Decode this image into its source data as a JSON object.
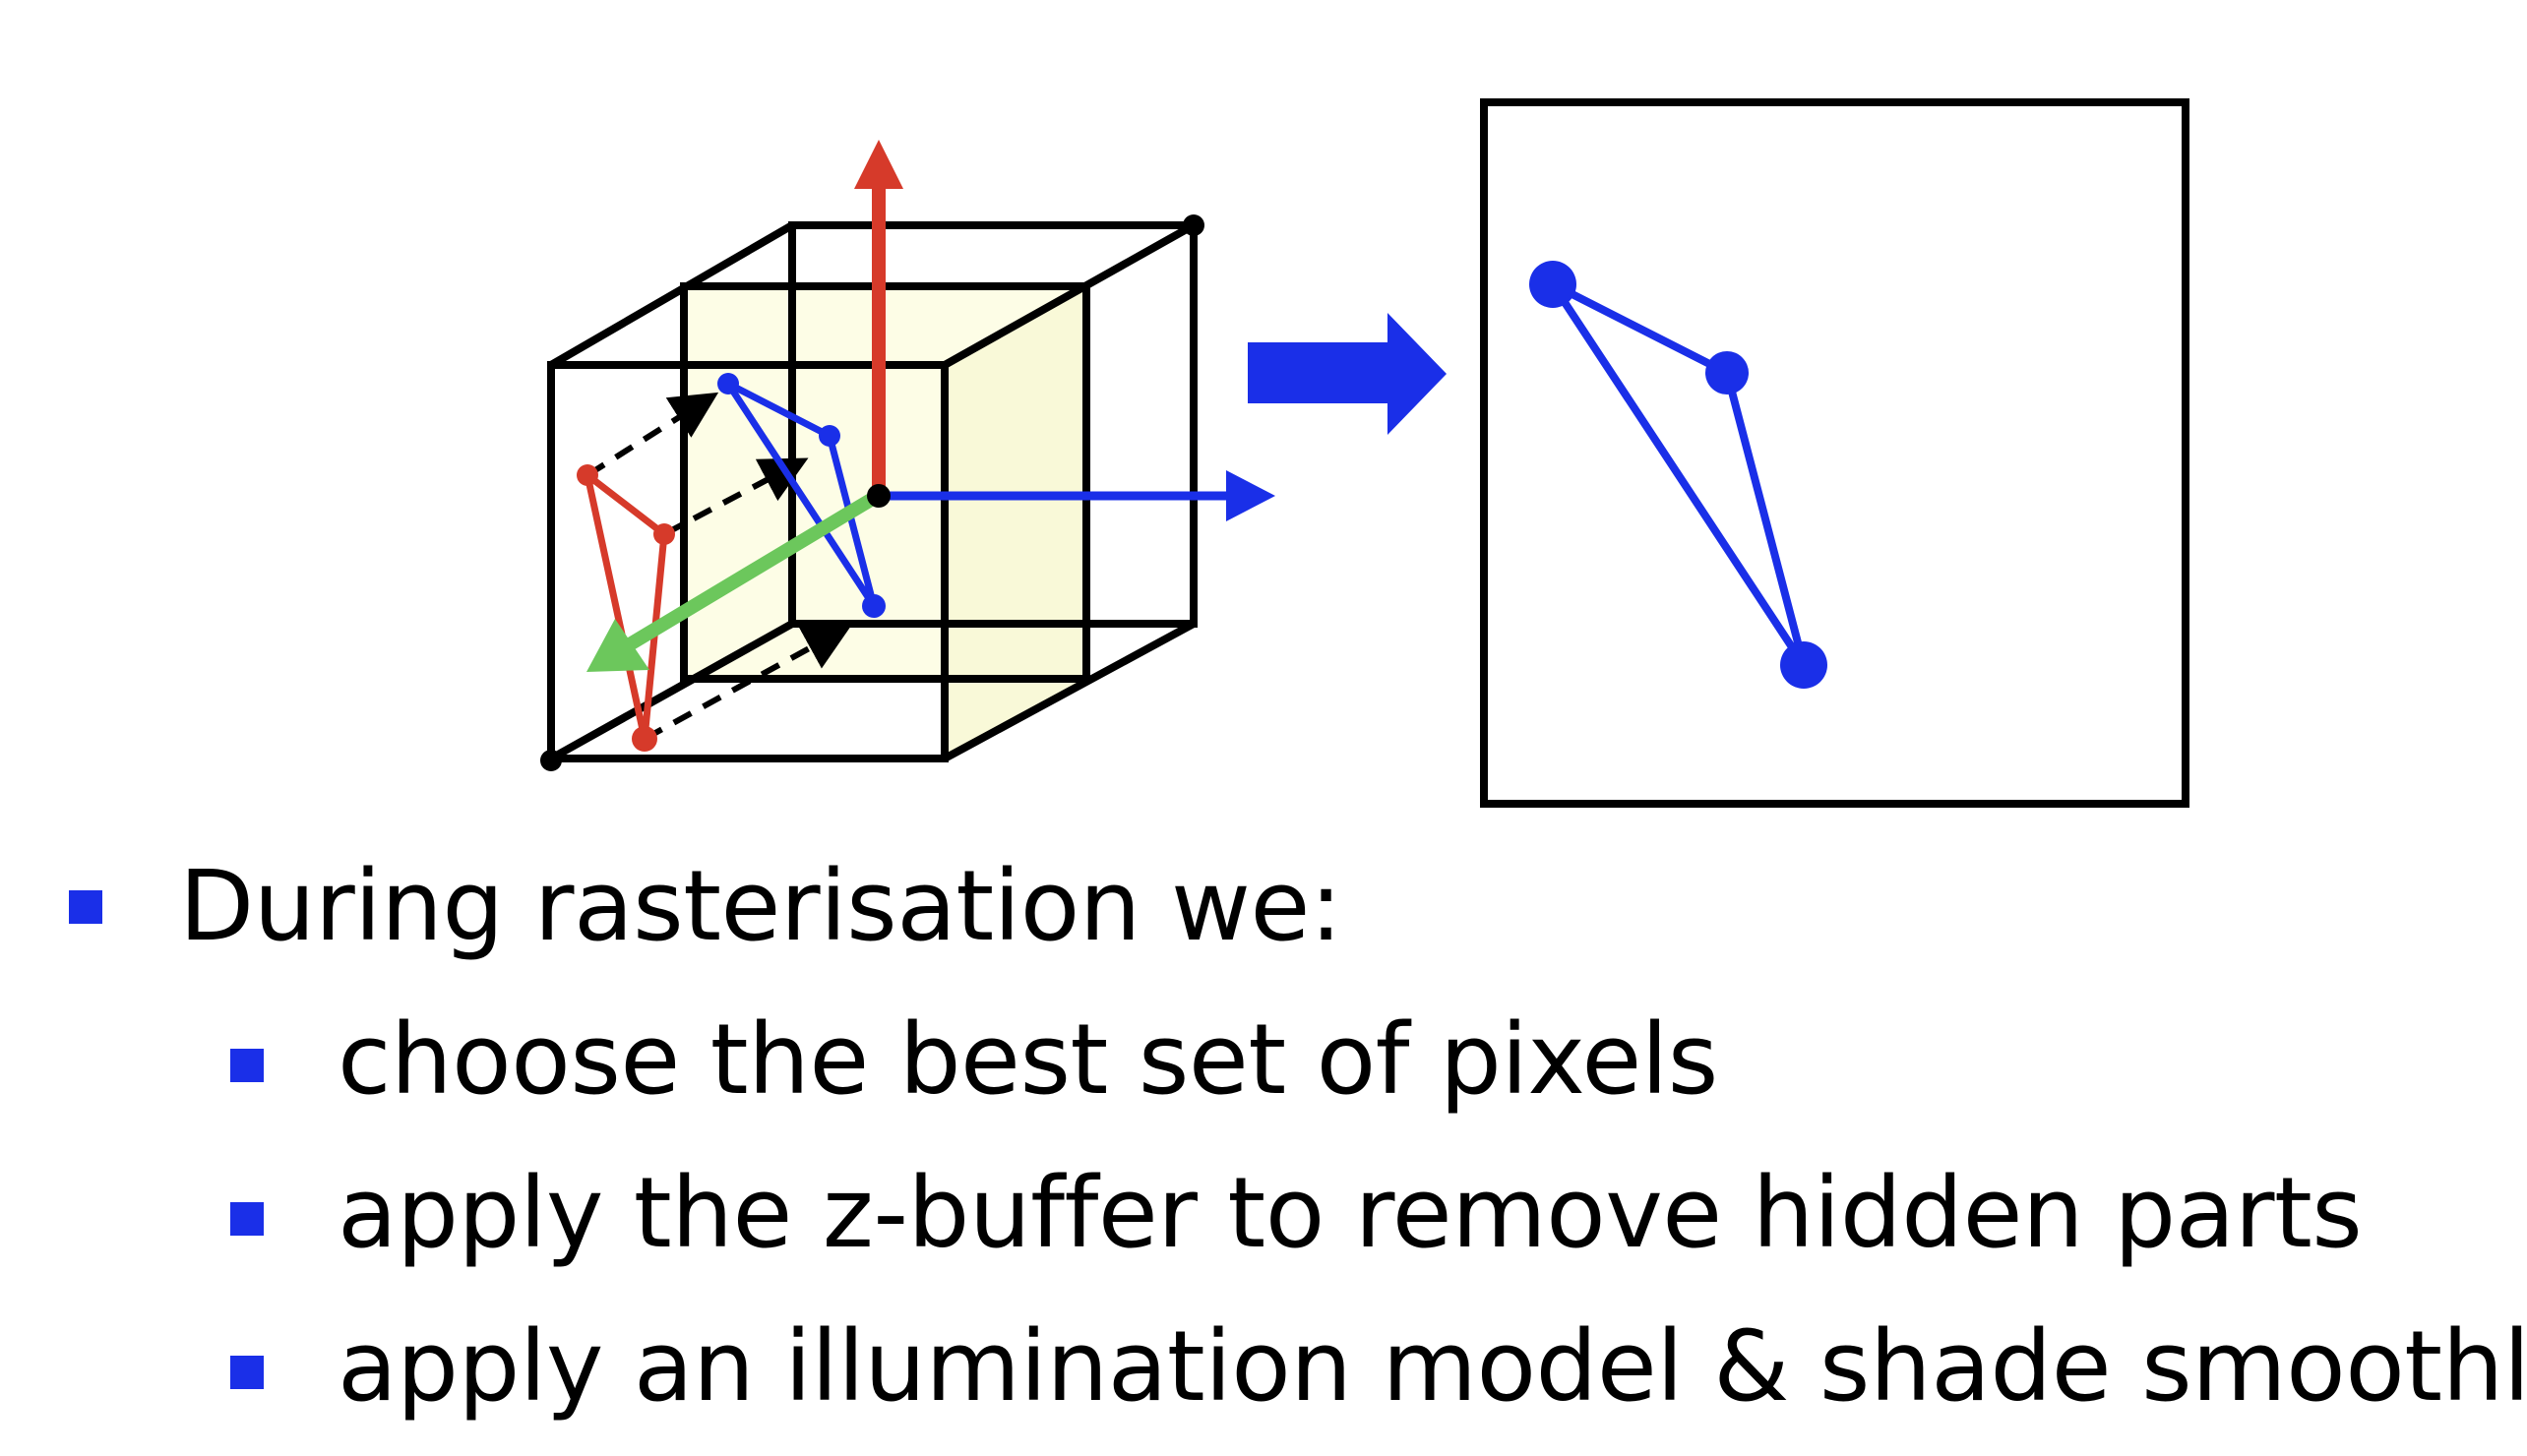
{
  "colors": {
    "cube_edges": "#000000",
    "near_face_fill": "#fdfde6",
    "y_axis": "#d63a2a",
    "x_axis": "#1a2fe8",
    "z_axis": "#6cc75c",
    "triangle_source": "#d63a2a",
    "triangle_projected": "#1a2fe8",
    "arrow": "#1a2fe8",
    "bullet": "#1a2fe8"
  },
  "icons": {
    "transform_arrow": "right-arrow-icon",
    "bullet": "square-bullet-icon"
  },
  "bullets": {
    "main": "During rasterisation we:",
    "sub": [
      "choose the best set of pixels",
      "apply the z-buffer to remove hidden parts",
      "apply an illumination model & shade smoothly"
    ]
  }
}
